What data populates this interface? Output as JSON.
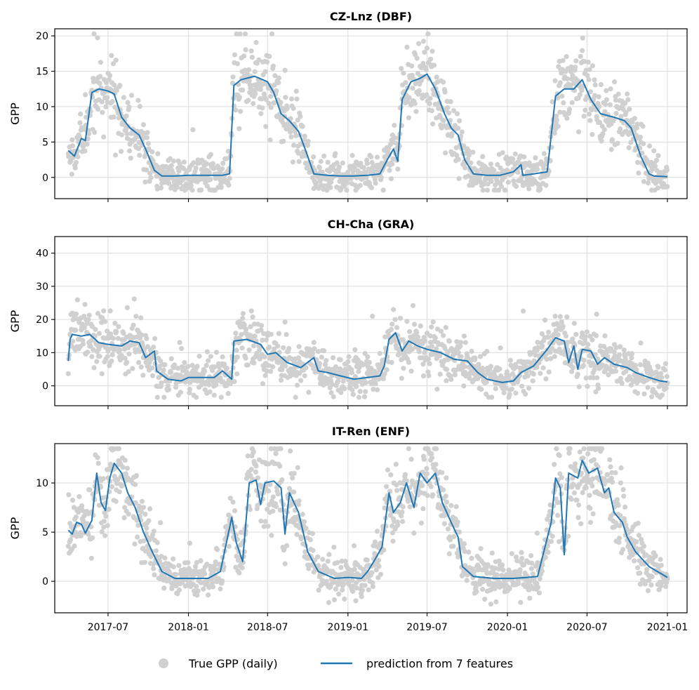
{
  "chart_data": {
    "type": "scatter+line",
    "x_ticks": [
      "2017-07",
      "2018-01",
      "2018-07",
      "2019-01",
      "2019-07",
      "2020-01",
      "2020-07",
      "2021-01"
    ],
    "x_range": [
      "2017-04-01",
      "2021-01-01"
    ],
    "legend": {
      "position": "bottom-center",
      "scatter_label": "True GPP (daily)",
      "line_label": "prediction from 7 features"
    },
    "colors": {
      "scatter": "#d0d0d0",
      "line": "#1f77b4"
    },
    "panels": [
      {
        "title": "CZ-Lnz (DBF)",
        "ylabel": "GPP",
        "ylim": [
          -3,
          21
        ],
        "yticks": [
          "0",
          "5",
          "10",
          "15",
          "20"
        ],
        "scatter_seed": 11,
        "prediction": [
          [
            "2017-04-01",
            3.8
          ],
          [
            "2017-04-15",
            3.0
          ],
          [
            "2017-05-01",
            5.5
          ],
          [
            "2017-05-10",
            5.2
          ],
          [
            "2017-05-25",
            12.0
          ],
          [
            "2017-06-10",
            12.5
          ],
          [
            "2017-07-01",
            12.2
          ],
          [
            "2017-07-15",
            11.8
          ],
          [
            "2017-08-01",
            8.5
          ],
          [
            "2017-08-20",
            7.0
          ],
          [
            "2017-09-10",
            6.0
          ],
          [
            "2017-09-25",
            4.0
          ],
          [
            "2017-10-15",
            1.0
          ],
          [
            "2017-11-01",
            0.2
          ],
          [
            "2017-12-01",
            0.2
          ],
          [
            "2018-01-01",
            0.3
          ],
          [
            "2018-02-15",
            0.3
          ],
          [
            "2018-03-20",
            0.3
          ],
          [
            "2018-04-05",
            0.5
          ],
          [
            "2018-04-15",
            13.0
          ],
          [
            "2018-05-01",
            13.8
          ],
          [
            "2018-06-01",
            14.3
          ],
          [
            "2018-07-01",
            13.5
          ],
          [
            "2018-07-15",
            12.0
          ],
          [
            "2018-08-01",
            9.0
          ],
          [
            "2018-08-20",
            8.0
          ],
          [
            "2018-09-10",
            6.5
          ],
          [
            "2018-09-25",
            4.0
          ],
          [
            "2018-10-15",
            0.5
          ],
          [
            "2018-11-15",
            0.3
          ],
          [
            "2018-12-15",
            0.2
          ],
          [
            "2019-01-15",
            0.2
          ],
          [
            "2019-02-15",
            0.3
          ],
          [
            "2019-03-15",
            0.5
          ],
          [
            "2019-04-01",
            2.5
          ],
          [
            "2019-04-15",
            4.0
          ],
          [
            "2019-04-25",
            2.3
          ],
          [
            "2019-05-05",
            11.0
          ],
          [
            "2019-05-25",
            13.5
          ],
          [
            "2019-06-15",
            14.0
          ],
          [
            "2019-07-01",
            14.6
          ],
          [
            "2019-07-20",
            12.5
          ],
          [
            "2019-08-10",
            9.0
          ],
          [
            "2019-08-25",
            7.0
          ],
          [
            "2019-09-10",
            6.0
          ],
          [
            "2019-09-25",
            2.5
          ],
          [
            "2019-10-15",
            0.5
          ],
          [
            "2019-11-15",
            0.3
          ],
          [
            "2019-12-15",
            0.3
          ],
          [
            "2020-01-15",
            0.8
          ],
          [
            "2020-02-01",
            1.8
          ],
          [
            "2020-02-05",
            0.3
          ],
          [
            "2020-03-01",
            0.5
          ],
          [
            "2020-04-01",
            0.8
          ],
          [
            "2020-04-20",
            11.5
          ],
          [
            "2020-05-10",
            12.5
          ],
          [
            "2020-06-01",
            12.5
          ],
          [
            "2020-06-20",
            13.8
          ],
          [
            "2020-07-10",
            11.0
          ],
          [
            "2020-08-01",
            9.0
          ],
          [
            "2020-09-01",
            8.5
          ],
          [
            "2020-09-25",
            8.0
          ],
          [
            "2020-10-10",
            7.0
          ],
          [
            "2020-11-01",
            3.0
          ],
          [
            "2020-11-20",
            0.5
          ],
          [
            "2020-12-01",
            0.2
          ],
          [
            "2021-01-01",
            0.1
          ]
        ]
      },
      {
        "title": "CH-Cha (GRA)",
        "ylabel": "GPP",
        "ylim": [
          -6,
          45
        ],
        "yticks": [
          "0",
          "10",
          "20",
          "30",
          "40"
        ],
        "scatter_seed": 23,
        "prediction": [
          [
            "2017-04-01",
            7.5
          ],
          [
            "2017-04-05",
            14.0
          ],
          [
            "2017-04-10",
            15.5
          ],
          [
            "2017-05-01",
            15.0
          ],
          [
            "2017-05-20",
            15.5
          ],
          [
            "2017-06-10",
            13.0
          ],
          [
            "2017-07-01",
            12.5
          ],
          [
            "2017-08-01",
            12.0
          ],
          [
            "2017-08-20",
            13.5
          ],
          [
            "2017-09-10",
            13.0
          ],
          [
            "2017-09-25",
            8.5
          ],
          [
            "2017-10-15",
            10.5
          ],
          [
            "2017-10-20",
            4.5
          ],
          [
            "2017-11-15",
            2.0
          ],
          [
            "2017-12-15",
            1.5
          ],
          [
            "2018-01-01",
            2.5
          ],
          [
            "2018-02-01",
            2.5
          ],
          [
            "2018-03-01",
            2.5
          ],
          [
            "2018-03-20",
            4.5
          ],
          [
            "2018-04-10",
            2.0
          ],
          [
            "2018-04-15",
            13.5
          ],
          [
            "2018-05-15",
            14.0
          ],
          [
            "2018-06-15",
            12.5
          ],
          [
            "2018-07-01",
            9.5
          ],
          [
            "2018-07-20",
            10.0
          ],
          [
            "2018-08-15",
            7.0
          ],
          [
            "2018-09-15",
            5.5
          ],
          [
            "2018-10-15",
            8.5
          ],
          [
            "2018-10-25",
            4.5
          ],
          [
            "2018-11-15",
            4.0
          ],
          [
            "2018-12-15",
            3.0
          ],
          [
            "2019-01-15",
            2.0
          ],
          [
            "2019-02-15",
            2.5
          ],
          [
            "2019-03-15",
            3.0
          ],
          [
            "2019-03-25",
            6.0
          ],
          [
            "2019-04-05",
            14.0
          ],
          [
            "2019-04-20",
            16.0
          ],
          [
            "2019-05-05",
            10.5
          ],
          [
            "2019-05-20",
            13.5
          ],
          [
            "2019-06-10",
            12.0
          ],
          [
            "2019-07-01",
            11.0
          ],
          [
            "2019-08-01",
            10.0
          ],
          [
            "2019-09-01",
            8.0
          ],
          [
            "2019-10-01",
            7.5
          ],
          [
            "2019-10-25",
            4.0
          ],
          [
            "2019-11-15",
            2.0
          ],
          [
            "2019-12-20",
            1.0
          ],
          [
            "2020-01-15",
            1.5
          ],
          [
            "2020-02-01",
            4.0
          ],
          [
            "2020-03-01",
            6.0
          ],
          [
            "2020-04-01",
            11.0
          ],
          [
            "2020-04-20",
            14.5
          ],
          [
            "2020-05-10",
            13.5
          ],
          [
            "2020-05-20",
            7.0
          ],
          [
            "2020-06-01",
            12.0
          ],
          [
            "2020-06-10",
            5.0
          ],
          [
            "2020-06-20",
            11.0
          ],
          [
            "2020-07-10",
            10.5
          ],
          [
            "2020-07-25",
            6.5
          ],
          [
            "2020-08-10",
            8.5
          ],
          [
            "2020-09-01",
            6.5
          ],
          [
            "2020-10-01",
            5.5
          ],
          [
            "2020-10-20",
            4.0
          ],
          [
            "2020-11-20",
            2.5
          ],
          [
            "2020-12-15",
            1.5
          ],
          [
            "2021-01-01",
            1.2
          ]
        ]
      },
      {
        "title": "IT-Ren (ENF)",
        "ylabel": "GPP",
        "ylim": [
          -3.2,
          14
        ],
        "yticks": [
          "0",
          "5",
          "10"
        ],
        "scatter_seed": 37,
        "prediction": [
          [
            "2017-04-01",
            5.2
          ],
          [
            "2017-04-10",
            4.8
          ],
          [
            "2017-04-20",
            6.0
          ],
          [
            "2017-05-01",
            5.8
          ],
          [
            "2017-05-10",
            4.9
          ],
          [
            "2017-05-25",
            6.2
          ],
          [
            "2017-06-05",
            11.0
          ],
          [
            "2017-06-15",
            8.0
          ],
          [
            "2017-06-25",
            7.2
          ],
          [
            "2017-07-05",
            10.5
          ],
          [
            "2017-07-15",
            12.0
          ],
          [
            "2017-08-01",
            11.0
          ],
          [
            "2017-08-15",
            9.0
          ],
          [
            "2017-09-01",
            7.5
          ],
          [
            "2017-09-20",
            5.0
          ],
          [
            "2017-10-10",
            3.0
          ],
          [
            "2017-11-01",
            1.0
          ],
          [
            "2017-12-01",
            0.3
          ],
          [
            "2018-01-01",
            0.3
          ],
          [
            "2018-02-15",
            0.3
          ],
          [
            "2018-03-15",
            1.0
          ],
          [
            "2018-04-10",
            6.5
          ],
          [
            "2018-04-20",
            4.0
          ],
          [
            "2018-05-05",
            2.0
          ],
          [
            "2018-05-20",
            10.0
          ],
          [
            "2018-06-05",
            10.3
          ],
          [
            "2018-06-15",
            7.8
          ],
          [
            "2018-06-25",
            10.0
          ],
          [
            "2018-07-15",
            10.2
          ],
          [
            "2018-08-01",
            9.5
          ],
          [
            "2018-08-10",
            4.8
          ],
          [
            "2018-08-20",
            9.0
          ],
          [
            "2018-09-10",
            7.0
          ],
          [
            "2018-10-01",
            3.0
          ],
          [
            "2018-10-25",
            1.0
          ],
          [
            "2018-12-01",
            0.3
          ],
          [
            "2019-01-01",
            0.4
          ],
          [
            "2019-02-01",
            0.3
          ],
          [
            "2019-02-15",
            1.0
          ],
          [
            "2019-03-01",
            2.0
          ],
          [
            "2019-03-20",
            3.5
          ],
          [
            "2019-04-05",
            9.0
          ],
          [
            "2019-04-15",
            7.0
          ],
          [
            "2019-05-01",
            8.0
          ],
          [
            "2019-05-15",
            10.0
          ],
          [
            "2019-06-01",
            7.5
          ],
          [
            "2019-06-15",
            11.0
          ],
          [
            "2019-07-01",
            10.0
          ],
          [
            "2019-07-20",
            11.0
          ],
          [
            "2019-08-05",
            8.0
          ],
          [
            "2019-08-25",
            6.0
          ],
          [
            "2019-09-10",
            4.5
          ],
          [
            "2019-09-20",
            1.5
          ],
          [
            "2019-10-15",
            0.5
          ],
          [
            "2019-12-01",
            0.3
          ],
          [
            "2020-01-15",
            0.3
          ],
          [
            "2020-02-15",
            0.4
          ],
          [
            "2020-03-10",
            0.5
          ],
          [
            "2020-04-10",
            6.0
          ],
          [
            "2020-04-20",
            10.5
          ],
          [
            "2020-05-01",
            9.5
          ],
          [
            "2020-05-10",
            2.7
          ],
          [
            "2020-05-20",
            11.0
          ],
          [
            "2020-06-10",
            10.5
          ],
          [
            "2020-06-20",
            12.3
          ],
          [
            "2020-07-05",
            11.0
          ],
          [
            "2020-07-25",
            11.5
          ],
          [
            "2020-08-10",
            9.0
          ],
          [
            "2020-08-20",
            9.5
          ],
          [
            "2020-09-01",
            7.0
          ],
          [
            "2020-09-20",
            6.0
          ],
          [
            "2020-10-01",
            4.5
          ],
          [
            "2020-10-20",
            3.0
          ],
          [
            "2020-11-20",
            1.5
          ],
          [
            "2021-01-01",
            0.4
          ]
        ]
      }
    ]
  }
}
